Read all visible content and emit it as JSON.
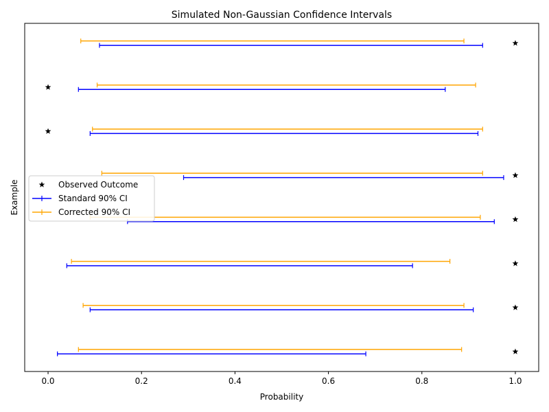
{
  "chart_data": {
    "type": "interval",
    "title": "Simulated Non-Gaussian Confidence Intervals",
    "xlabel": "Probability",
    "ylabel": "Example",
    "xlim": [
      -0.05,
      1.05
    ],
    "xticks": [
      0.0,
      0.2,
      0.4,
      0.6,
      0.8,
      1.0
    ],
    "xtick_labels": [
      "0.0",
      "0.2",
      "0.4",
      "0.6",
      "0.8",
      "1.0"
    ],
    "grid": false,
    "legend_position": "center-left",
    "examples": [
      0,
      1,
      2,
      3,
      4,
      5,
      6,
      7
    ],
    "series": [
      {
        "name": "Observed Outcome",
        "kind": "marker",
        "color": "#000000",
        "values": [
          1,
          1,
          1,
          1,
          1,
          0,
          0,
          1
        ]
      },
      {
        "name": "Standard 90% CI",
        "kind": "interval",
        "color": "#0000ff",
        "lower": [
          0.02,
          0.09,
          0.04,
          0.17,
          0.29,
          0.09,
          0.065,
          0.11
        ],
        "upper": [
          0.68,
          0.91,
          0.78,
          0.955,
          0.975,
          0.92,
          0.85,
          0.93
        ]
      },
      {
        "name": "Corrected 90% CI",
        "kind": "interval",
        "color": "#ffa500",
        "lower": [
          0.065,
          0.075,
          0.05,
          0.09,
          0.115,
          0.095,
          0.105,
          0.07
        ],
        "upper": [
          0.885,
          0.89,
          0.86,
          0.925,
          0.93,
          0.93,
          0.915,
          0.89
        ]
      }
    ]
  }
}
